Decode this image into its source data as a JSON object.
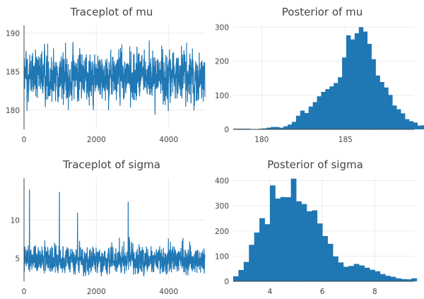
{
  "colors": {
    "series": "#1f77b4",
    "grid": "#ebebeb",
    "text": "#444444"
  },
  "chart_data": [
    {
      "id": "trace-mu",
      "type": "line",
      "title": "Traceplot of mu",
      "xlabel": "",
      "ylabel": "",
      "xlim": [
        0,
        5000
      ],
      "ylim": [
        177.5,
        191
      ],
      "xticks": [
        0,
        2000,
        4000
      ],
      "yticks": [
        180,
        185,
        190
      ],
      "grid": true,
      "series": [
        {
          "n": 5000,
          "center": 184.4,
          "typical_range": [
            181.5,
            187.5
          ],
          "min": 177.9,
          "max": 190.2,
          "x": [
            0,
            250,
            500,
            750,
            1000,
            1250,
            1500,
            1750,
            2000,
            2250,
            2500,
            2750,
            3000,
            3250,
            3500,
            3750,
            4000,
            4250,
            4500,
            4750,
            5000
          ],
          "y": [
            184.2,
            186.8,
            181.8,
            185.6,
            183.9,
            187.0,
            182.3,
            184.9,
            185.7,
            180.9,
            186.4,
            184.1,
            182.6,
            187.4,
            184.6,
            181.5,
            185.2,
            186.9,
            183.2,
            184.7,
            185.0
          ]
        }
      ]
    },
    {
      "id": "hist-mu",
      "type": "bar",
      "title": "Posterior of mu",
      "xlabel": "",
      "ylabel": "",
      "xlim": [
        178.3,
        189.1
      ],
      "ylim": [
        0,
        305
      ],
      "xticks": [
        180,
        185
      ],
      "yticks": [
        0,
        100,
        200,
        300
      ],
      "grid": true,
      "bin_start": 178.3,
      "bin_width": 0.25,
      "values": [
        2,
        2,
        2,
        2,
        0,
        1,
        2,
        3,
        5,
        7,
        7,
        5,
        9,
        14,
        22,
        40,
        55,
        48,
        67,
        80,
        97,
        110,
        118,
        126,
        136,
        153,
        211,
        276,
        264,
        282,
        300,
        287,
        251,
        206,
        158,
        139,
        123,
        101,
        70,
        59,
        47,
        30,
        24,
        20,
        11,
        12,
        22
      ]
    },
    {
      "id": "trace-sigma",
      "type": "line",
      "title": "Traceplot of sigma",
      "xlabel": "",
      "ylabel": "",
      "xlim": [
        0,
        5000
      ],
      "ylim": [
        2,
        15.5
      ],
      "xticks": [
        0,
        2000,
        4000
      ],
      "yticks": [
        5,
        10
      ],
      "grid": true,
      "series": [
        {
          "n": 5000,
          "center": 4.7,
          "typical_range": [
            3.0,
            7.0
          ],
          "min": 2.5,
          "spikes": [
            [
              150,
              14.0
            ],
            [
              980,
              13.7
            ],
            [
              1480,
              11.0
            ],
            [
              2880,
              12.4
            ]
          ],
          "x": [
            0,
            250,
            500,
            750,
            1000,
            1250,
            1500,
            1750,
            2000,
            2250,
            2500,
            2750,
            3000,
            3250,
            3500,
            3750,
            4000,
            4250,
            4500,
            4750,
            5000
          ],
          "y": [
            4.2,
            5.1,
            3.8,
            4.9,
            4.5,
            6.2,
            3.9,
            4.6,
            5.4,
            3.5,
            4.8,
            5.0,
            4.1,
            6.0,
            4.4,
            3.7,
            5.2,
            4.9,
            4.0,
            4.6,
            4.8
          ]
        }
      ]
    },
    {
      "id": "hist-sigma",
      "type": "bar",
      "title": "Posterior of sigma",
      "xlabel": "",
      "ylabel": "",
      "xlim": [
        2.6,
        9.5
      ],
      "ylim": [
        0,
        410
      ],
      "xticks": [
        4,
        6,
        8
      ],
      "yticks": [
        0,
        100,
        200,
        300,
        400
      ],
      "grid": true,
      "bin_start": 2.6,
      "bin_width": 0.2,
      "values": [
        20,
        45,
        77,
        145,
        194,
        251,
        227,
        381,
        329,
        335,
        334,
        408,
        318,
        307,
        278,
        282,
        230,
        180,
        149,
        99,
        75,
        58,
        61,
        69,
        63,
        54,
        46,
        40,
        29,
        22,
        18,
        12,
        9,
        8,
        12
      ]
    }
  ]
}
